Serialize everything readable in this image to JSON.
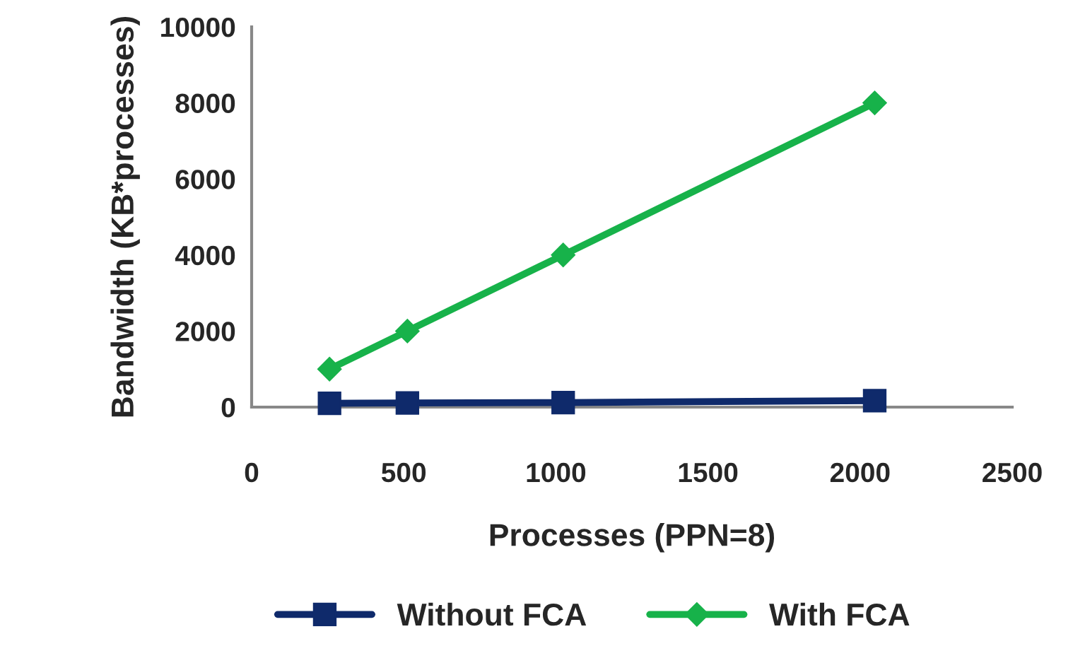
{
  "chart_data": {
    "type": "line",
    "xlabel": "Processes (PPN=8)",
    "ylabel": "Bandwidth (KB*processes)",
    "x": [
      256,
      512,
      1024,
      2048
    ],
    "series": [
      {
        "name": "Without FCA",
        "color": "#0f2a6b",
        "values": [
          100,
          110,
          120,
          170
        ],
        "marker": "square"
      },
      {
        "name": "With FCA",
        "color": "#17b24a",
        "values": [
          1000,
          2000,
          4000,
          8000
        ],
        "marker": "diamond"
      }
    ],
    "xlim": [
      0,
      2500
    ],
    "xticks": [
      0,
      500,
      1000,
      1500,
      2000,
      2500
    ],
    "ylim": [
      0,
      10000
    ],
    "yticks": [
      0,
      2000,
      4000,
      6000,
      8000,
      10000
    ],
    "grid": false,
    "legend": "bottom",
    "line_style": "solid"
  }
}
